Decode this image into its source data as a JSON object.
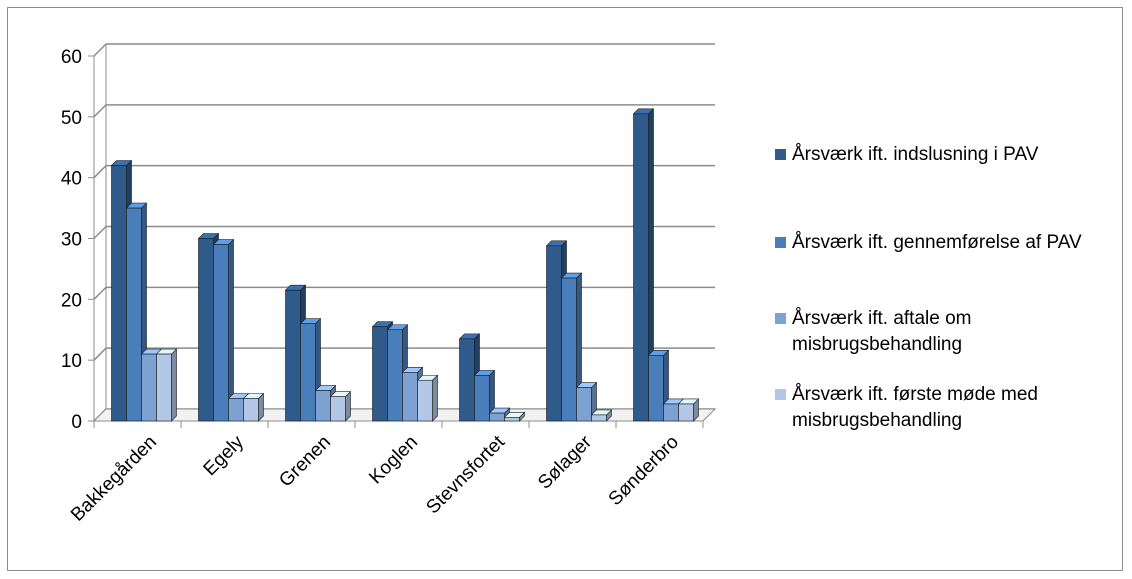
{
  "chart_data": {
    "type": "bar",
    "title": "",
    "xlabel": "",
    "ylabel": "",
    "ylim": [
      0,
      60
    ],
    "yticks": [
      0,
      10,
      20,
      30,
      40,
      50,
      60
    ],
    "grid": true,
    "legend_position": "right",
    "categories": [
      "Bakkegården",
      "Egely",
      "Grenen",
      "Koglen",
      "Stevnsfortet",
      "Sølager",
      "Sønderbro"
    ],
    "series": [
      {
        "name": "Årsværk ift. indslusning i PAV",
        "color": "#2e5a8c",
        "values": [
          42,
          30,
          21.5,
          15.5,
          13.5,
          28.8,
          50.5
        ]
      },
      {
        "name": "Årsværk ift. gennemførelse af PAV",
        "color": "#4a7ebb",
        "values": [
          35,
          29,
          16,
          15,
          7.5,
          23.5,
          10.8
        ]
      },
      {
        "name": "Årsværk ift. aftale om misbrugsbehandling",
        "color": "#7ea1d4",
        "values": [
          11,
          3.7,
          5,
          8,
          1.3,
          5.5,
          2.8
        ]
      },
      {
        "name": "Årsværk ift. første møde med misbrugsbehandling",
        "color": "#b3c7e6",
        "values": [
          11,
          3.7,
          4,
          6.7,
          0.6,
          1,
          2.8
        ]
      }
    ]
  }
}
